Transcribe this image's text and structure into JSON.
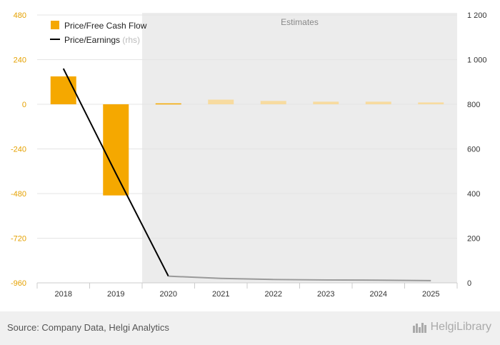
{
  "chart_data": {
    "type": "bar+line",
    "categories": [
      "2018",
      "2019",
      "2020",
      "2021",
      "2022",
      "2023",
      "2024",
      "2025"
    ],
    "series": [
      {
        "name": "Price/Free Cash Flow",
        "axis": "left",
        "type": "bar",
        "values": [
          150,
          -490,
          5,
          25,
          18,
          14,
          14,
          10
        ],
        "estimate_from": "2021"
      },
      {
        "name": "Price/Earnings",
        "note": "(rhs)",
        "axis": "right",
        "type": "line",
        "values": [
          960,
          490,
          30,
          20,
          15,
          13,
          12,
          10
        ],
        "estimate_from": "2020"
      }
    ],
    "left_axis": {
      "min": -960,
      "max": 480,
      "ticks": [
        "480",
        "240",
        "0",
        "-240",
        "-480",
        "-720",
        "-960"
      ]
    },
    "right_axis": {
      "min": 0,
      "max": 1200,
      "ticks": [
        "1 200",
        "1 000",
        "800",
        "600",
        "400",
        "200",
        "0"
      ]
    },
    "estimates_label": "Estimates",
    "colors": {
      "bar": "#f5a800",
      "bar_estimate": "#f7dba0",
      "line": "#000000",
      "line_estimate": "#999999",
      "estimate_bg": "#ececec"
    }
  },
  "footer": {
    "source": "Source: Company Data, Helgi Analytics",
    "brand": "HelgiLibrary"
  }
}
